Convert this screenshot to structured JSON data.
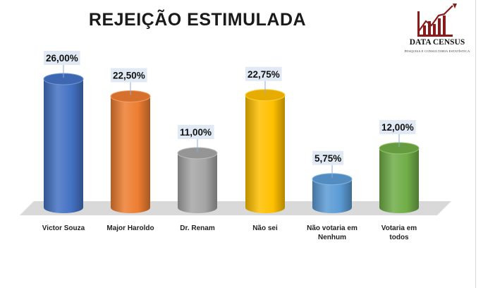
{
  "brand": {
    "name": "DATA CENSUS",
    "tagline": "PESQUISA E CONSULTORIA ESTATÍSTICA",
    "color": "#8b1a1a"
  },
  "chart_data": {
    "type": "bar",
    "title": "REJEIÇÃO ESTIMULADA",
    "categories": [
      "Victor Souza",
      "Major Haroldo",
      "Dr. Renam",
      "Não sei",
      "Não votaria em Nenhum",
      "Votaria em todos"
    ],
    "category_lines": [
      [
        "Victor Souza"
      ],
      [
        "Major Haroldo"
      ],
      [
        "Dr. Renam"
      ],
      [
        "Não sei"
      ],
      [
        "Não votaria em",
        "Nenhum"
      ],
      [
        "Votaria em",
        "todos"
      ]
    ],
    "values": [
      26.0,
      22.5,
      11.0,
      22.75,
      5.75,
      12.0
    ],
    "labels": [
      "26,00%",
      "22,50%",
      "11,00%",
      "22,75%",
      "5,75%",
      "12,00%"
    ],
    "colors": [
      "#4472c4",
      "#ed7d31",
      "#a5a5a5",
      "#ffc000",
      "#5b9bd5",
      "#70ad47"
    ],
    "ylim": [
      0,
      26
    ],
    "grid": false,
    "legend": "none"
  }
}
